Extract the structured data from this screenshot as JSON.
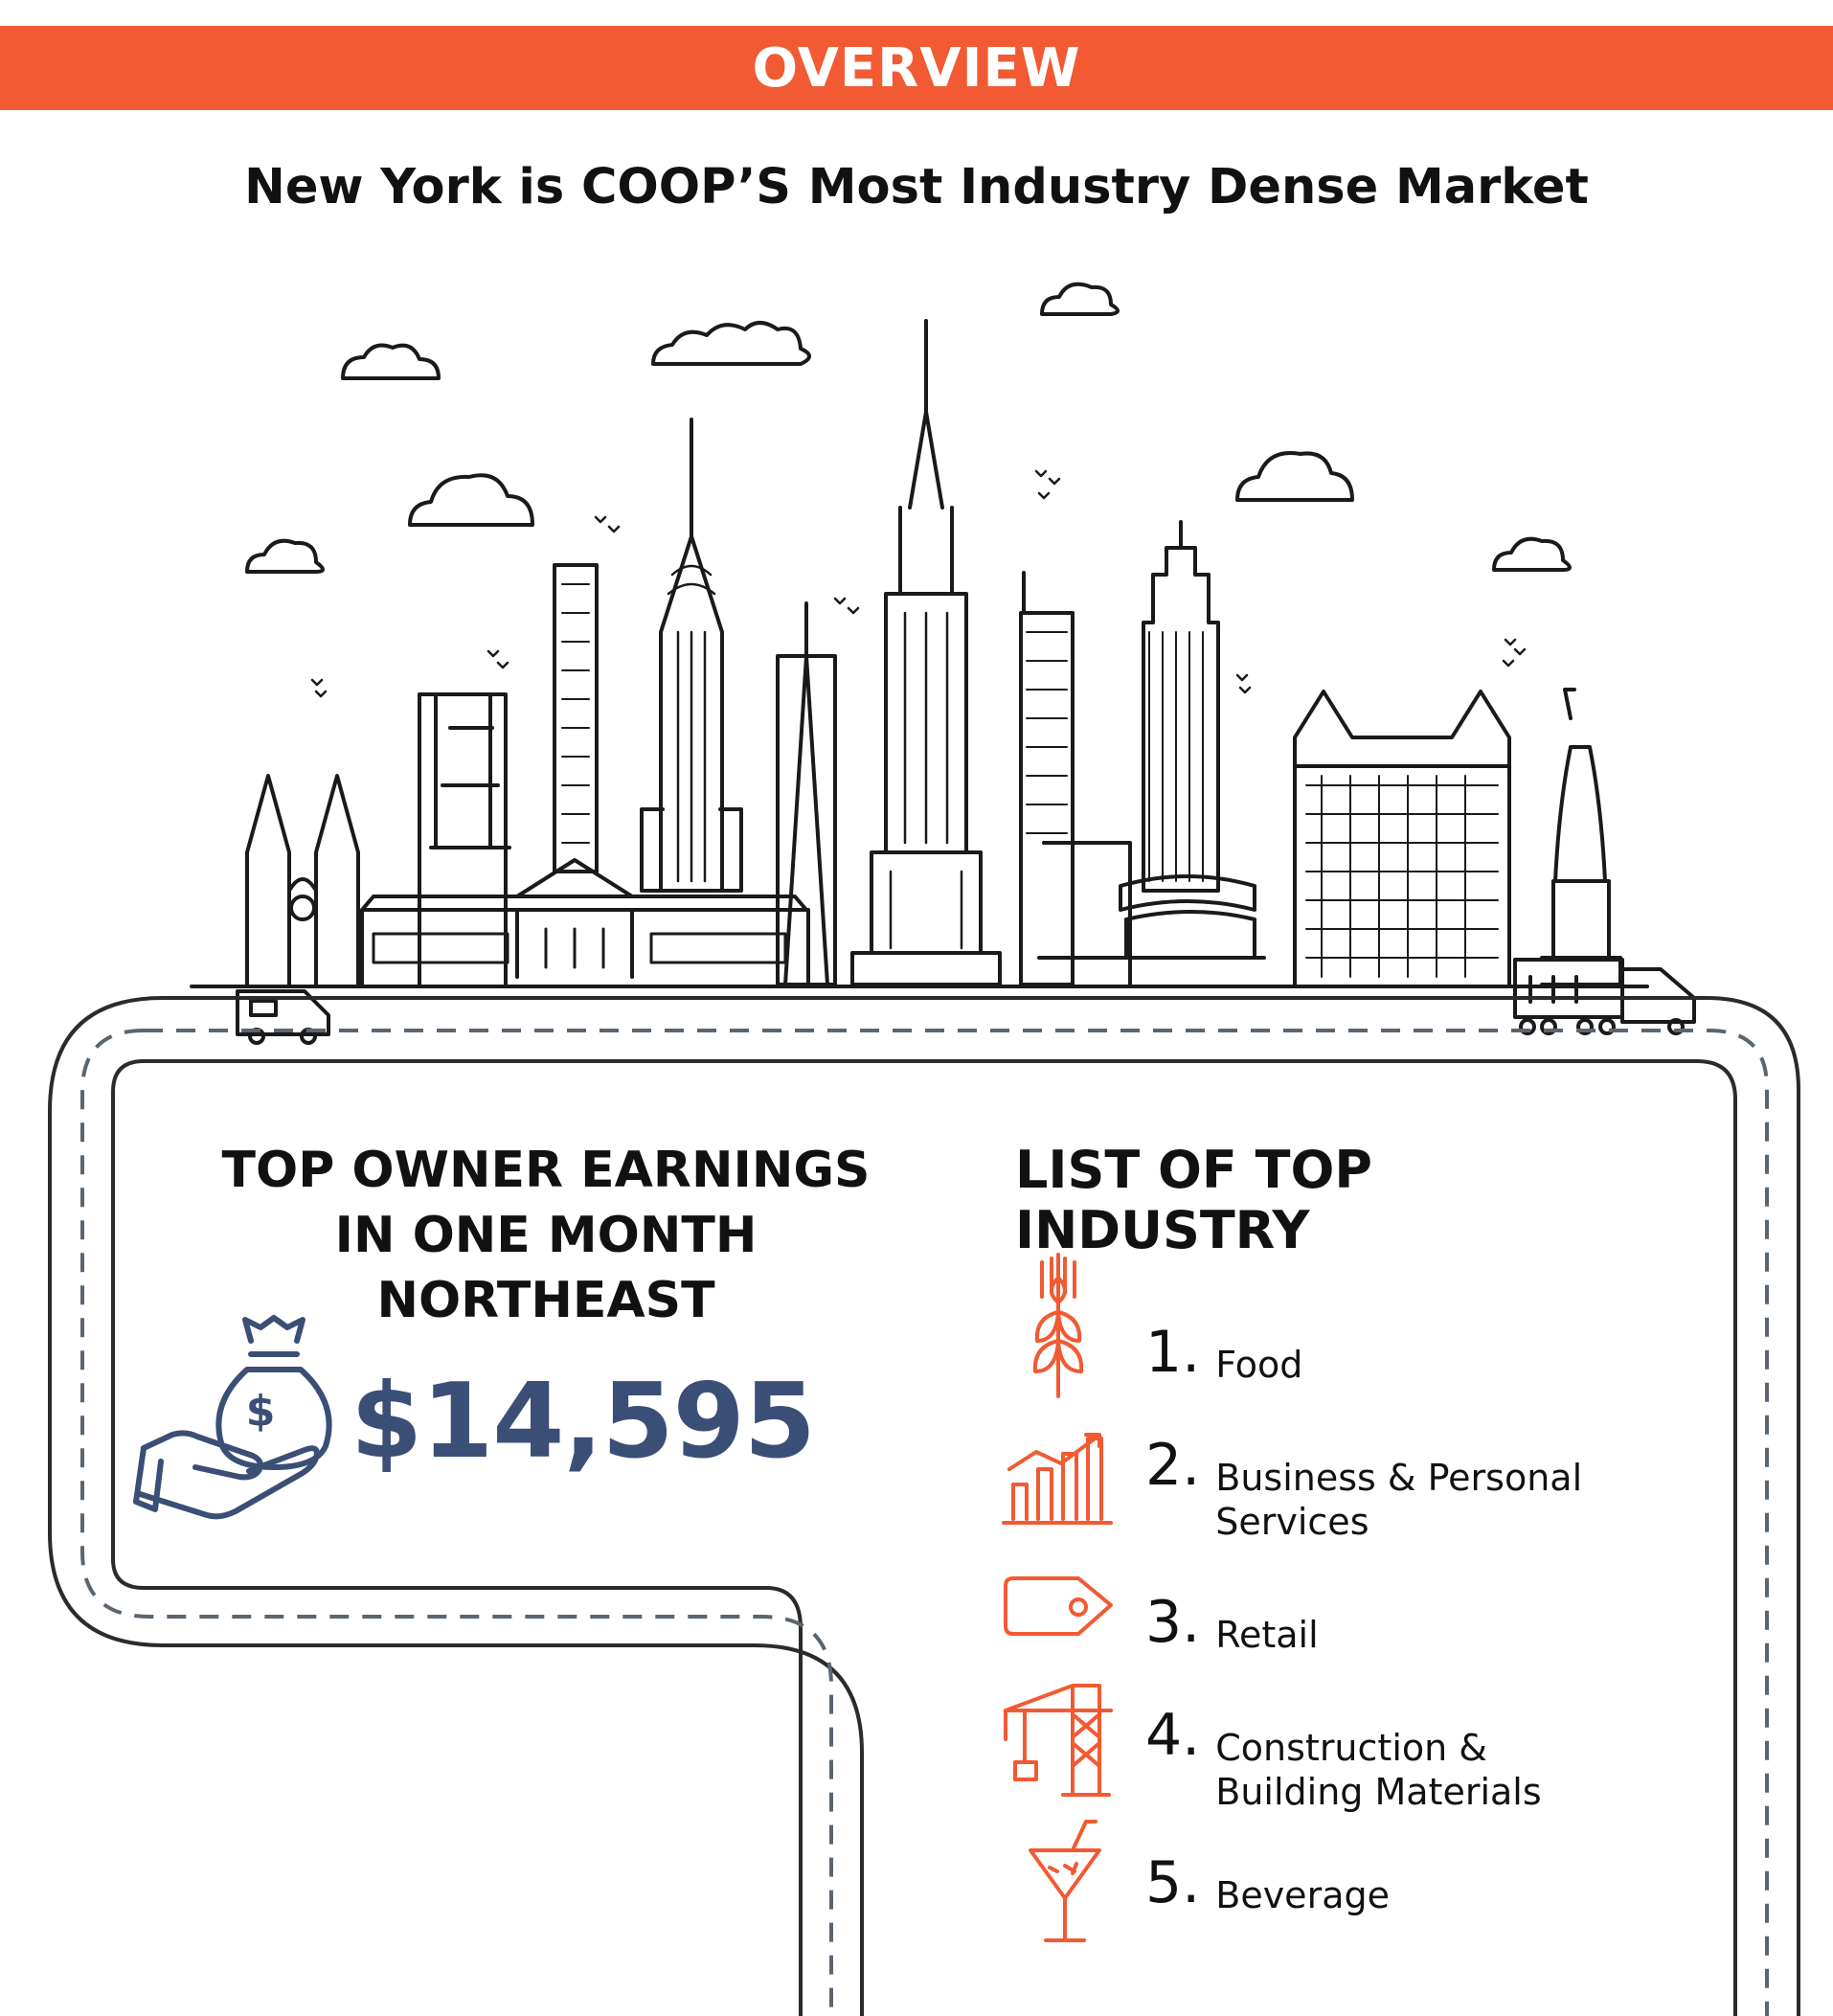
{
  "header": {
    "banner": "OVERVIEW",
    "subtitle": "New York is COOP’S Most Industry Dense Market"
  },
  "earnings": {
    "heading_lines": [
      "TOP OWNER EARNINGS",
      "IN ONE MONTH",
      "NORTHEAST"
    ],
    "amount": "$14,595",
    "icon": "money-bag-hand-icon"
  },
  "industries": {
    "heading": "LIST OF TOP INDUSTRY",
    "items": [
      {
        "num": "1.",
        "label": "Food",
        "icon": "wheat-icon"
      },
      {
        "num": "2.",
        "label": "Business & Personal Services",
        "icon": "bar-chart-icon"
      },
      {
        "num": "3.",
        "label": "Retail",
        "icon": "price-tag-icon"
      },
      {
        "num": "4.",
        "label": "Construction & Building Materials",
        "icon": "crane-icon"
      },
      {
        "num": "5.",
        "label": "Beverage",
        "icon": "cocktail-icon"
      }
    ]
  },
  "colors": {
    "accent": "#F15A32",
    "amount": "#3B4E76",
    "road": "#2b2b2b",
    "dash": "#5a6570"
  }
}
